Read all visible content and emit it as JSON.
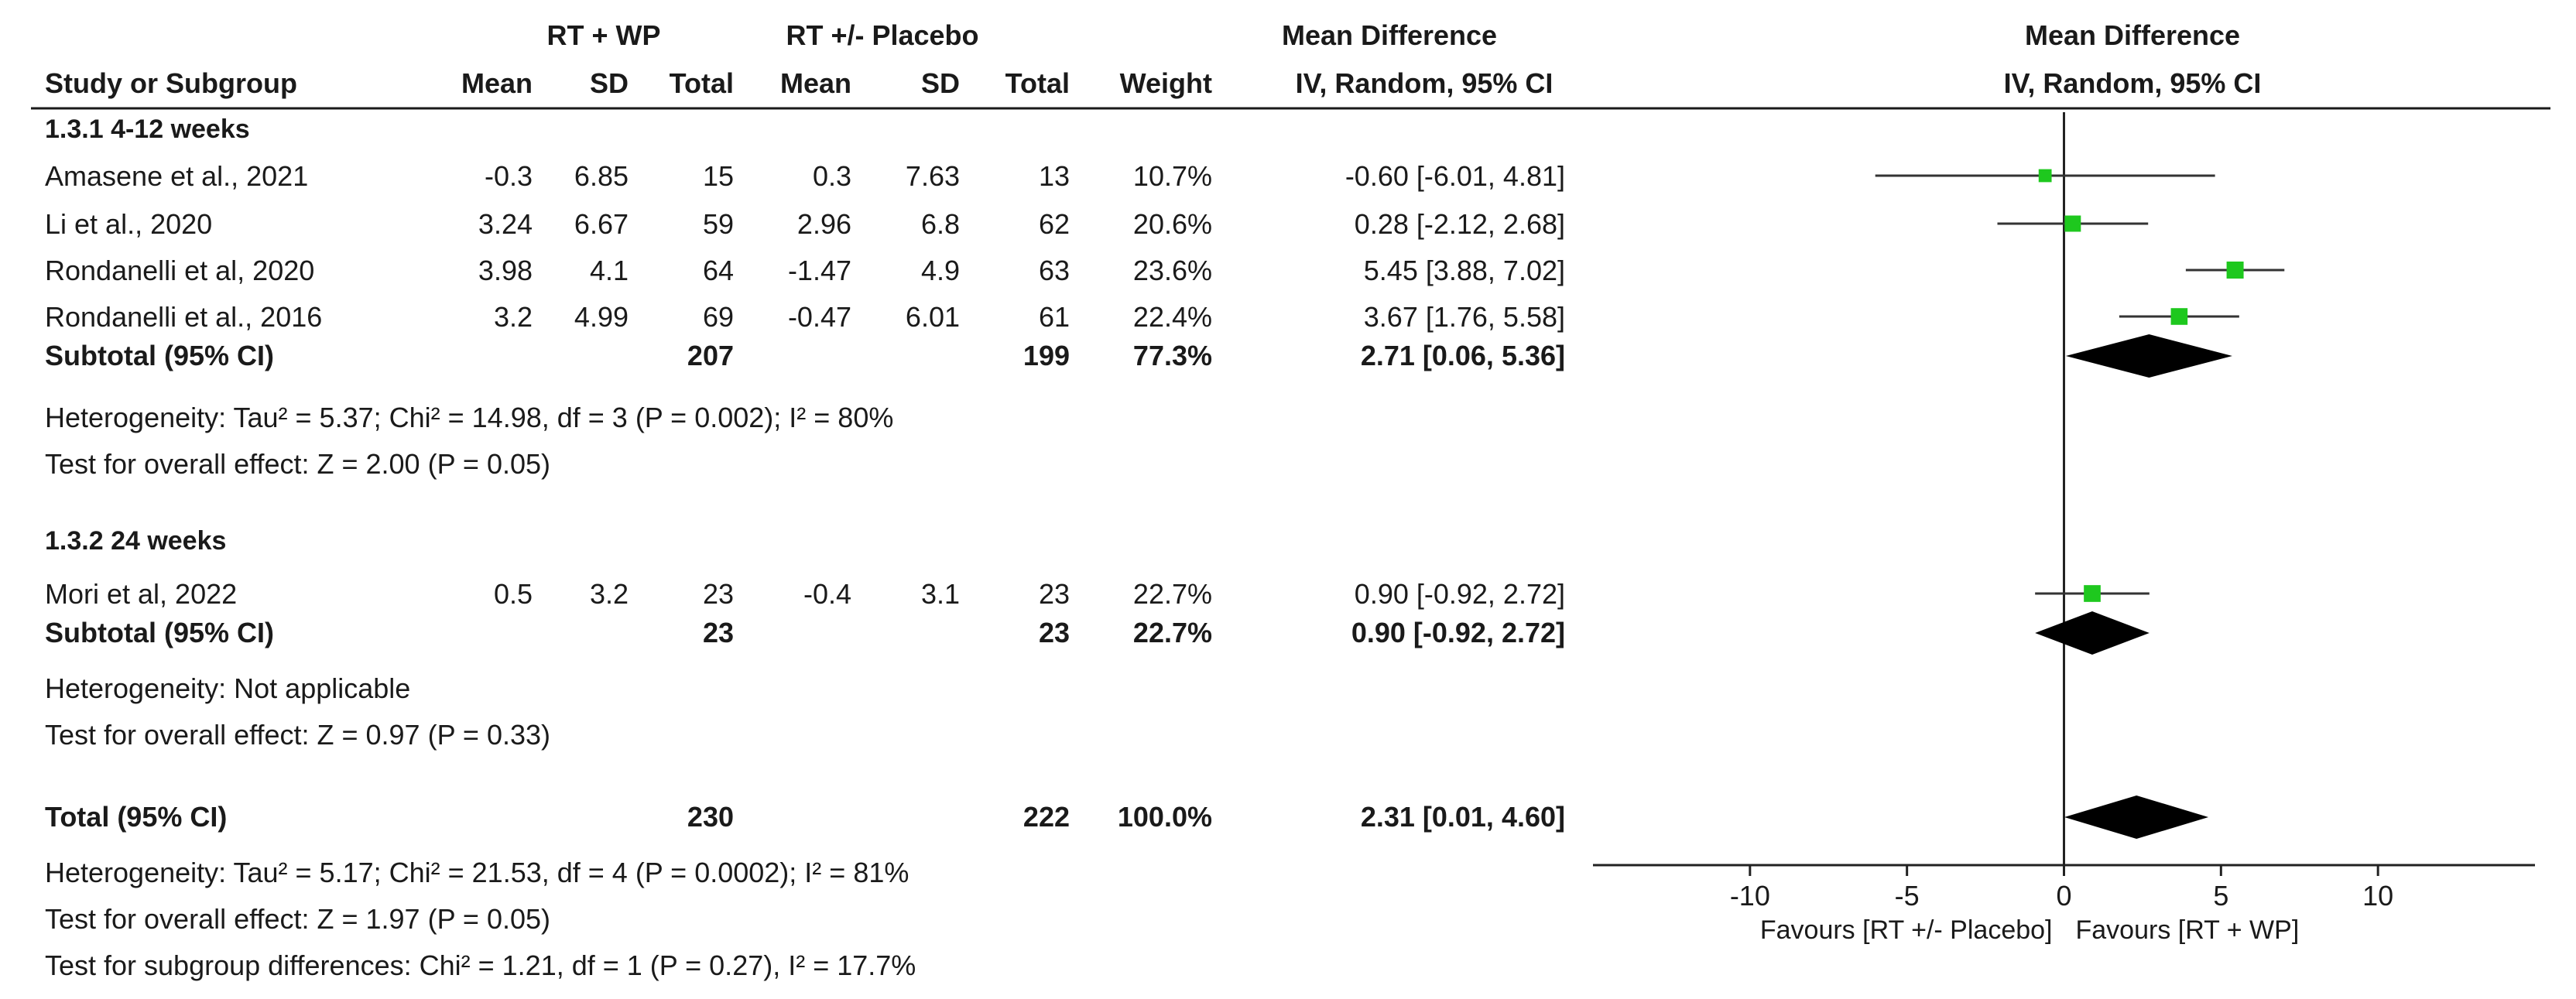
{
  "headers": {
    "group1": "RT + WP",
    "group2": "RT +/- Placebo",
    "effect": "Mean Difference",
    "effect_method": "IV, Random, 95% CI",
    "plot_title": "Mean Difference",
    "plot_method": "IV, Random, 95% CI",
    "study": "Study or Subgroup",
    "mean": "Mean",
    "sd": "SD",
    "total": "Total",
    "weight": "Weight"
  },
  "subgroups": [
    {
      "label": "1.3.1 4-12 weeks",
      "studies": [
        {
          "name": "Amasene et al., 2021",
          "m1": "-0.3",
          "sd1": "6.85",
          "n1": "15",
          "m2": "0.3",
          "sd2": "7.63",
          "n2": "13",
          "weight": "10.7%",
          "ci": "-0.60 [-6.01, 4.81]",
          "md": -0.6,
          "lo": -6.01,
          "hi": 4.81
        },
        {
          "name": "Li et al., 2020",
          "m1": "3.24",
          "sd1": "6.67",
          "n1": "59",
          "m2": "2.96",
          "sd2": "6.8",
          "n2": "62",
          "weight": "20.6%",
          "ci": "0.28 [-2.12, 2.68]",
          "md": 0.28,
          "lo": -2.12,
          "hi": 2.68
        },
        {
          "name": "Rondanelli et al, 2020",
          "m1": "3.98",
          "sd1": "4.1",
          "n1": "64",
          "m2": "-1.47",
          "sd2": "4.9",
          "n2": "63",
          "weight": "23.6%",
          "ci": "5.45 [3.88, 7.02]",
          "md": 5.45,
          "lo": 3.88,
          "hi": 7.02
        },
        {
          "name": "Rondanelli et al., 2016",
          "m1": "3.2",
          "sd1": "4.99",
          "n1": "69",
          "m2": "-0.47",
          "sd2": "6.01",
          "n2": "61",
          "weight": "22.4%",
          "ci": "3.67 [1.76, 5.58]",
          "md": 3.67,
          "lo": 1.76,
          "hi": 5.58
        }
      ],
      "subtotal": {
        "label": "Subtotal (95% CI)",
        "n1": "207",
        "n2": "199",
        "weight": "77.3%",
        "ci": "2.71 [0.06, 5.36]",
        "md": 2.71,
        "lo": 0.06,
        "hi": 5.36
      },
      "heterogeneity": "Heterogeneity: Tau² = 5.37; Chi² = 14.98, df = 3 (P = 0.002); I² = 80%",
      "overall": "Test for overall effect: Z = 2.00 (P = 0.05)"
    },
    {
      "label": "1.3.2 24 weeks",
      "studies": [
        {
          "name": "Mori et al, 2022",
          "m1": "0.5",
          "sd1": "3.2",
          "n1": "23",
          "m2": "-0.4",
          "sd2": "3.1",
          "n2": "23",
          "weight": "22.7%",
          "ci": "0.90 [-0.92, 2.72]",
          "md": 0.9,
          "lo": -0.92,
          "hi": 2.72
        }
      ],
      "subtotal": {
        "label": "Subtotal (95% CI)",
        "n1": "23",
        "n2": "23",
        "weight": "22.7%",
        "ci": "0.90 [-0.92, 2.72]",
        "md": 0.9,
        "lo": -0.92,
        "hi": 2.72
      },
      "heterogeneity": "Heterogeneity: Not applicable",
      "overall": "Test for overall effect: Z = 0.97 (P = 0.33)"
    }
  ],
  "total": {
    "label": "Total (95% CI)",
    "n1": "230",
    "n2": "222",
    "weight": "100.0%",
    "ci": "2.31 [0.01, 4.60]",
    "md": 2.31,
    "lo": 0.01,
    "hi": 4.6
  },
  "footer": [
    "Heterogeneity: Tau² = 5.17; Chi² = 21.53, df = 4 (P = 0.0002); I² = 81%",
    "Test for overall effect: Z = 1.97 (P = 0.05)",
    "Test for subgroup differences: Chi² = 1.21, df = 1 (P = 0.27), I² = 17.7%"
  ],
  "axis": {
    "ticks": [
      -10,
      -5,
      0,
      5,
      10
    ],
    "range": [
      -15,
      15
    ],
    "favours_left": "Favours [RT +/- Placebo]",
    "favours_right": "Favours [RT + WP]"
  },
  "colors": {
    "text": "#1a1a1a",
    "square": "#1ec81e",
    "diamond": "#000000",
    "line": "#333333"
  },
  "chart_data": {
    "type": "forest",
    "title": "Mean Difference IV, Random, 95% CI",
    "xlabel_left": "Favours [RT +/- Placebo]",
    "xlabel_right": "Favours [RT + WP]",
    "xlim": [
      -15,
      15
    ],
    "ticks": [
      -10,
      -5,
      0,
      5,
      10
    ],
    "studies": [
      {
        "name": "Amasene et al., 2021",
        "md": -0.6,
        "lo": -6.01,
        "hi": 4.81,
        "weight": 10.7
      },
      {
        "name": "Li et al., 2020",
        "md": 0.28,
        "lo": -2.12,
        "hi": 2.68,
        "weight": 20.6
      },
      {
        "name": "Rondanelli et al, 2020",
        "md": 5.45,
        "lo": 3.88,
        "hi": 7.02,
        "weight": 23.6
      },
      {
        "name": "Rondanelli et al., 2016",
        "md": 3.67,
        "lo": 1.76,
        "hi": 5.58,
        "weight": 22.4
      },
      {
        "name": "Mori et al, 2022",
        "md": 0.9,
        "lo": -0.92,
        "hi": 2.72,
        "weight": 22.7
      }
    ],
    "pooled": [
      {
        "name": "Subtotal 1.3.1",
        "md": 2.71,
        "lo": 0.06,
        "hi": 5.36
      },
      {
        "name": "Subtotal 1.3.2",
        "md": 0.9,
        "lo": -0.92,
        "hi": 2.72
      },
      {
        "name": "Total",
        "md": 2.31,
        "lo": 0.01,
        "hi": 4.6
      }
    ]
  }
}
